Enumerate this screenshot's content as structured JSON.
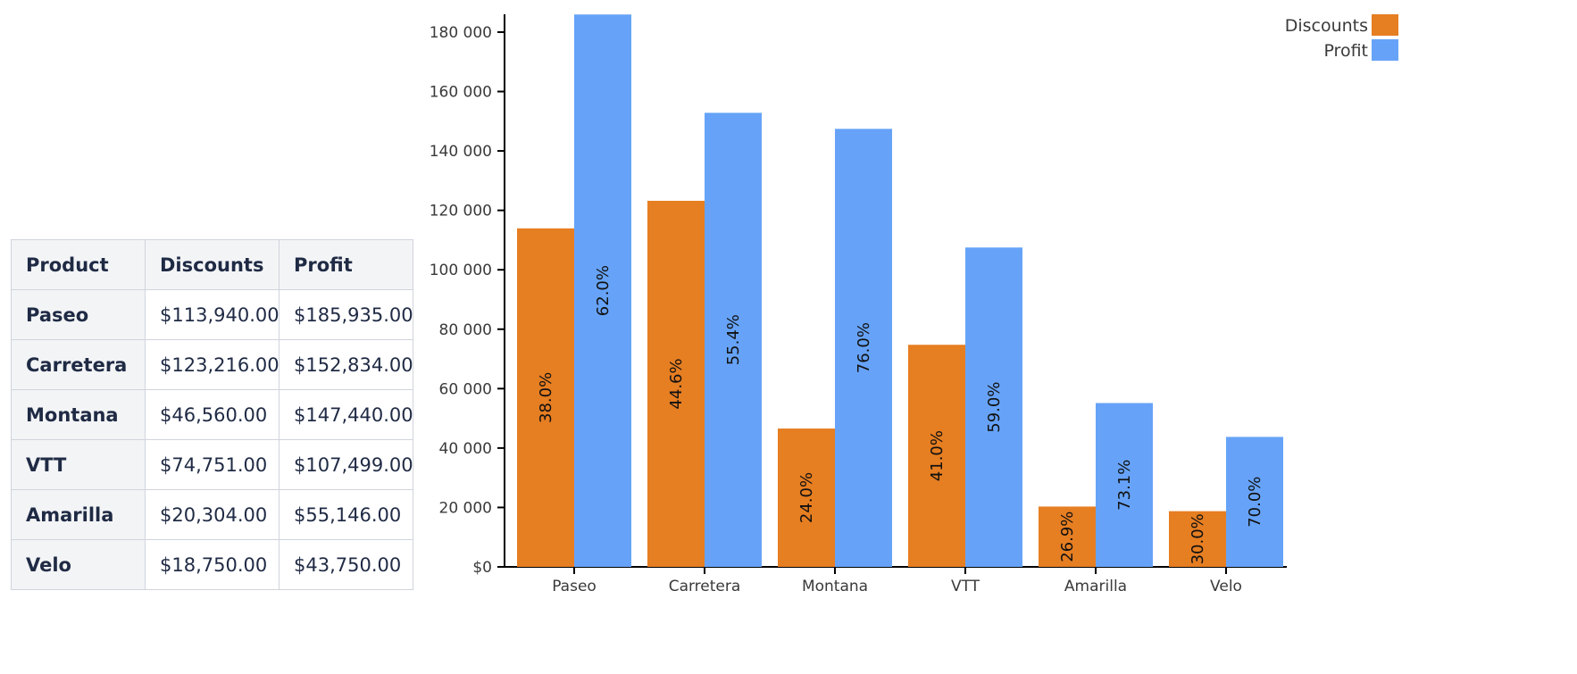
{
  "table": {
    "headers": [
      "Product",
      "Discounts",
      "Profit"
    ],
    "rows": [
      {
        "product": "Paseo",
        "discounts": "$113,940.00",
        "profit": "$185,935.00"
      },
      {
        "product": "Carretera",
        "discounts": "$123,216.00",
        "profit": "$152,834.00"
      },
      {
        "product": "Montana",
        "discounts": "$46,560.00",
        "profit": "$147,440.00"
      },
      {
        "product": "VTT",
        "discounts": "$74,751.00",
        "profit": "$107,499.00"
      },
      {
        "product": "Amarilla",
        "discounts": "$20,304.00",
        "profit": "$55,146.00"
      },
      {
        "product": "Velo",
        "discounts": "$18,750.00",
        "profit": "$43,750.00"
      }
    ]
  },
  "chart_data": {
    "type": "bar",
    "categories": [
      "Paseo",
      "Carretera",
      "Montana",
      "VTT",
      "Amarilla",
      "Velo"
    ],
    "series": [
      {
        "name": "Discounts",
        "color": "#e67e22",
        "values": [
          113940,
          123216,
          46560,
          74751,
          20304,
          18750
        ],
        "labels": [
          "38.0%",
          "44.6%",
          "24.0%",
          "41.0%",
          "26.9%",
          "30.0%"
        ]
      },
      {
        "name": "Profit",
        "color": "#66a3f8",
        "values": [
          185935,
          152834,
          147440,
          107499,
          55146,
          43750
        ],
        "labels": [
          "62.0%",
          "55.4%",
          "76.0%",
          "59.0%",
          "73.1%",
          "70.0%"
        ]
      }
    ],
    "ylim": [
      0,
      186000
    ],
    "yticks": [
      0,
      20000,
      40000,
      60000,
      80000,
      100000,
      120000,
      140000,
      160000,
      180000
    ],
    "ytick_labels": [
      "$0",
      "20 000",
      "40 000",
      "60 000",
      "80 000",
      "100 000",
      "120 000",
      "140 000",
      "160 000",
      "180 000"
    ],
    "legend_position": "top-right",
    "grid": false
  }
}
